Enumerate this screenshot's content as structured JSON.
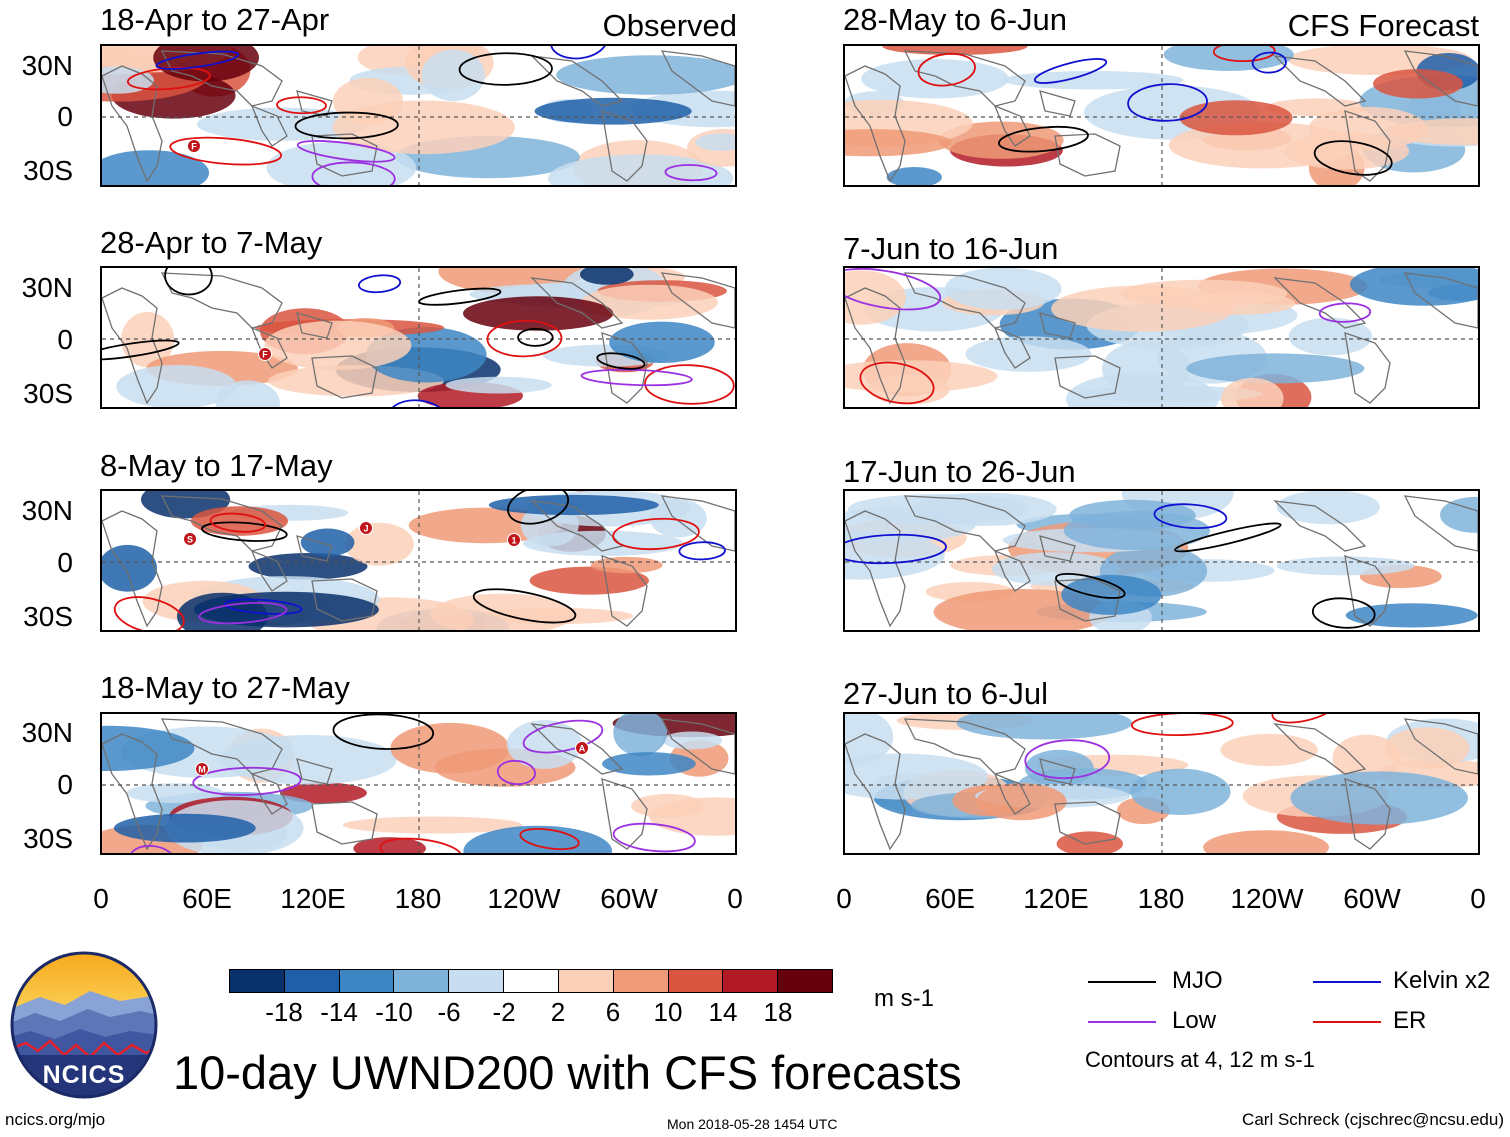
{
  "observed_header": "Observed",
  "forecast_header": "CFS Forecast",
  "observed_panels": [
    {
      "title": "18-Apr to 27-Apr",
      "markers": [
        "F"
      ]
    },
    {
      "title": "28-Apr to 7-May",
      "markers": [
        "F"
      ]
    },
    {
      "title": "8-May to 17-May",
      "markers": [
        "S",
        "J",
        "1"
      ]
    },
    {
      "title": "18-May to 27-May",
      "markers": [
        "M",
        "A"
      ]
    }
  ],
  "forecast_panels": [
    {
      "title": "28-May to 6-Jun"
    },
    {
      "title": "7-Jun to 16-Jun"
    },
    {
      "title": "17-Jun to 26-Jun"
    },
    {
      "title": "27-Jun to 6-Jul"
    }
  ],
  "lat_labels": [
    "30N",
    "0",
    "30S"
  ],
  "lon_labels": [
    "0",
    "60E",
    "120E",
    "180",
    "120W",
    "60W",
    "0"
  ],
  "colorbar": {
    "unit": "m s-1",
    "tick_labels": [
      "-18",
      "-14",
      "-10",
      "-6",
      "-2",
      "2",
      "6",
      "10",
      "14",
      "18"
    ],
    "colors": [
      "#08306b",
      "#1f5fa8",
      "#3d86c4",
      "#7fb3da",
      "#c8def0",
      "#ffffff",
      "#fbd0b9",
      "#f09a77",
      "#d9553f",
      "#b11a24",
      "#67000d"
    ]
  },
  "legend": {
    "items": [
      {
        "label": "MJO",
        "color": "#000000"
      },
      {
        "label": "Kelvin x2",
        "color": "#1010d0"
      },
      {
        "label": "Low",
        "color": "#9b30e0"
      },
      {
        "label": "ER",
        "color": "#e01010"
      }
    ],
    "contours_note": "Contours at 4, 12 m s-1"
  },
  "logo_text": "NCICS",
  "main_title": "10-day UWND200 with CFS forecasts",
  "footer": {
    "url": "ncics.org/mjo",
    "timestamp": "Mon 2018-05-28 1454 UTC",
    "credit": "Carl Schreck (cjschrec@ncsu.edu)"
  }
}
